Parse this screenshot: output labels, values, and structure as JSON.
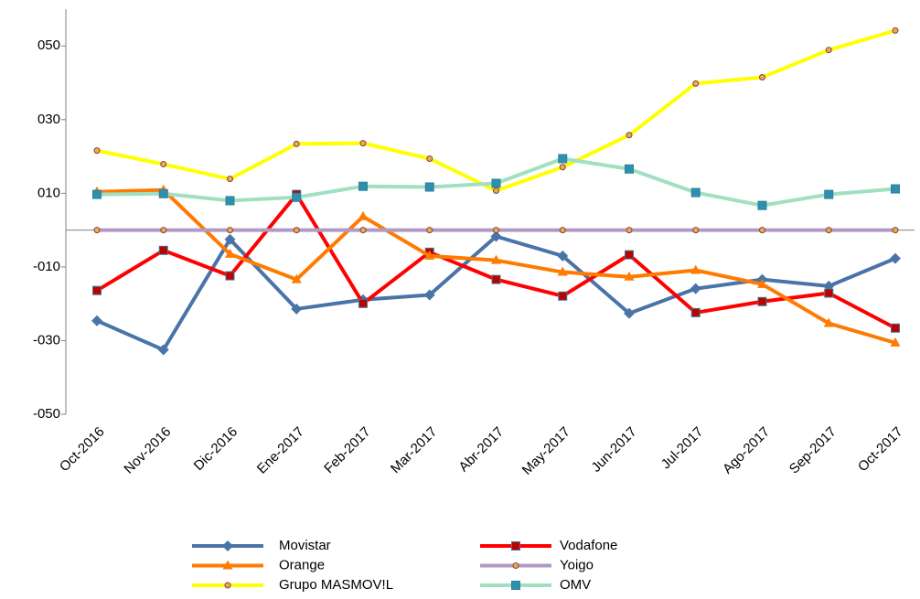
{
  "chart_data": {
    "type": "line",
    "categories": [
      "Oct-2016",
      "Nov-2016",
      "Dic-2016",
      "Ene-2017",
      "Feb-2017",
      "Mar-2017",
      "Abr-2017",
      "May-2017",
      "Jun-2017",
      "Jul-2017",
      "Ago-2017",
      "Sep-2017",
      "Oct-2017"
    ],
    "ylim": [
      -50,
      60
    ],
    "yticks": [
      {
        "value": -50,
        "label": "-050"
      },
      {
        "value": -30,
        "label": "-030"
      },
      {
        "value": -10,
        "label": "-010"
      },
      {
        "value": 10,
        "label": "010"
      },
      {
        "value": 30,
        "label": "030"
      },
      {
        "value": 50,
        "label": "050"
      }
    ],
    "series": [
      {
        "name": "Movistar",
        "color": "#4a74a8",
        "marker": "diamond",
        "values": [
          -24.6,
          -32.5,
          -2.5,
          -21.4,
          -18.9,
          -17.6,
          -1.7,
          -7.0,
          -22.6,
          -15.9,
          -13.4,
          -15.2,
          -7.7
        ]
      },
      {
        "name": "Vodafone",
        "color": "#ff0000",
        "marker": "square",
        "values": [
          -16.4,
          -5.5,
          -12.4,
          9.7,
          -19.9,
          -6.0,
          -13.4,
          -17.9,
          -6.7,
          -22.4,
          -19.4,
          -17.1,
          -26.6
        ]
      },
      {
        "name": "Orange",
        "color": "#ff7a00",
        "marker": "triangle",
        "values": [
          10.4,
          10.9,
          -6.5,
          -13.4,
          3.7,
          -7.0,
          -8.2,
          -11.4,
          -12.7,
          -10.9,
          -14.7,
          -25.3,
          -30.6
        ]
      },
      {
        "name": "Yoigo",
        "color": "#b09ac4",
        "marker": "circle",
        "values": [
          0,
          0,
          0,
          0,
          0,
          0,
          0,
          0,
          0,
          0,
          0,
          0,
          0
        ]
      },
      {
        "name": "Grupo MASMOV!L",
        "color": "#ffff00",
        "marker": "circle",
        "values": [
          21.6,
          17.9,
          13.9,
          23.4,
          23.6,
          19.4,
          10.7,
          17.1,
          25.8,
          39.8,
          41.5,
          48.9,
          54.2
        ]
      },
      {
        "name": "OMV",
        "color": "#a0e0c0",
        "marker": "square",
        "values": [
          9.7,
          9.9,
          8.0,
          8.9,
          11.9,
          11.7,
          12.7,
          19.4,
          16.6,
          10.2,
          6.7,
          9.7,
          11.2
        ]
      }
    ]
  }
}
